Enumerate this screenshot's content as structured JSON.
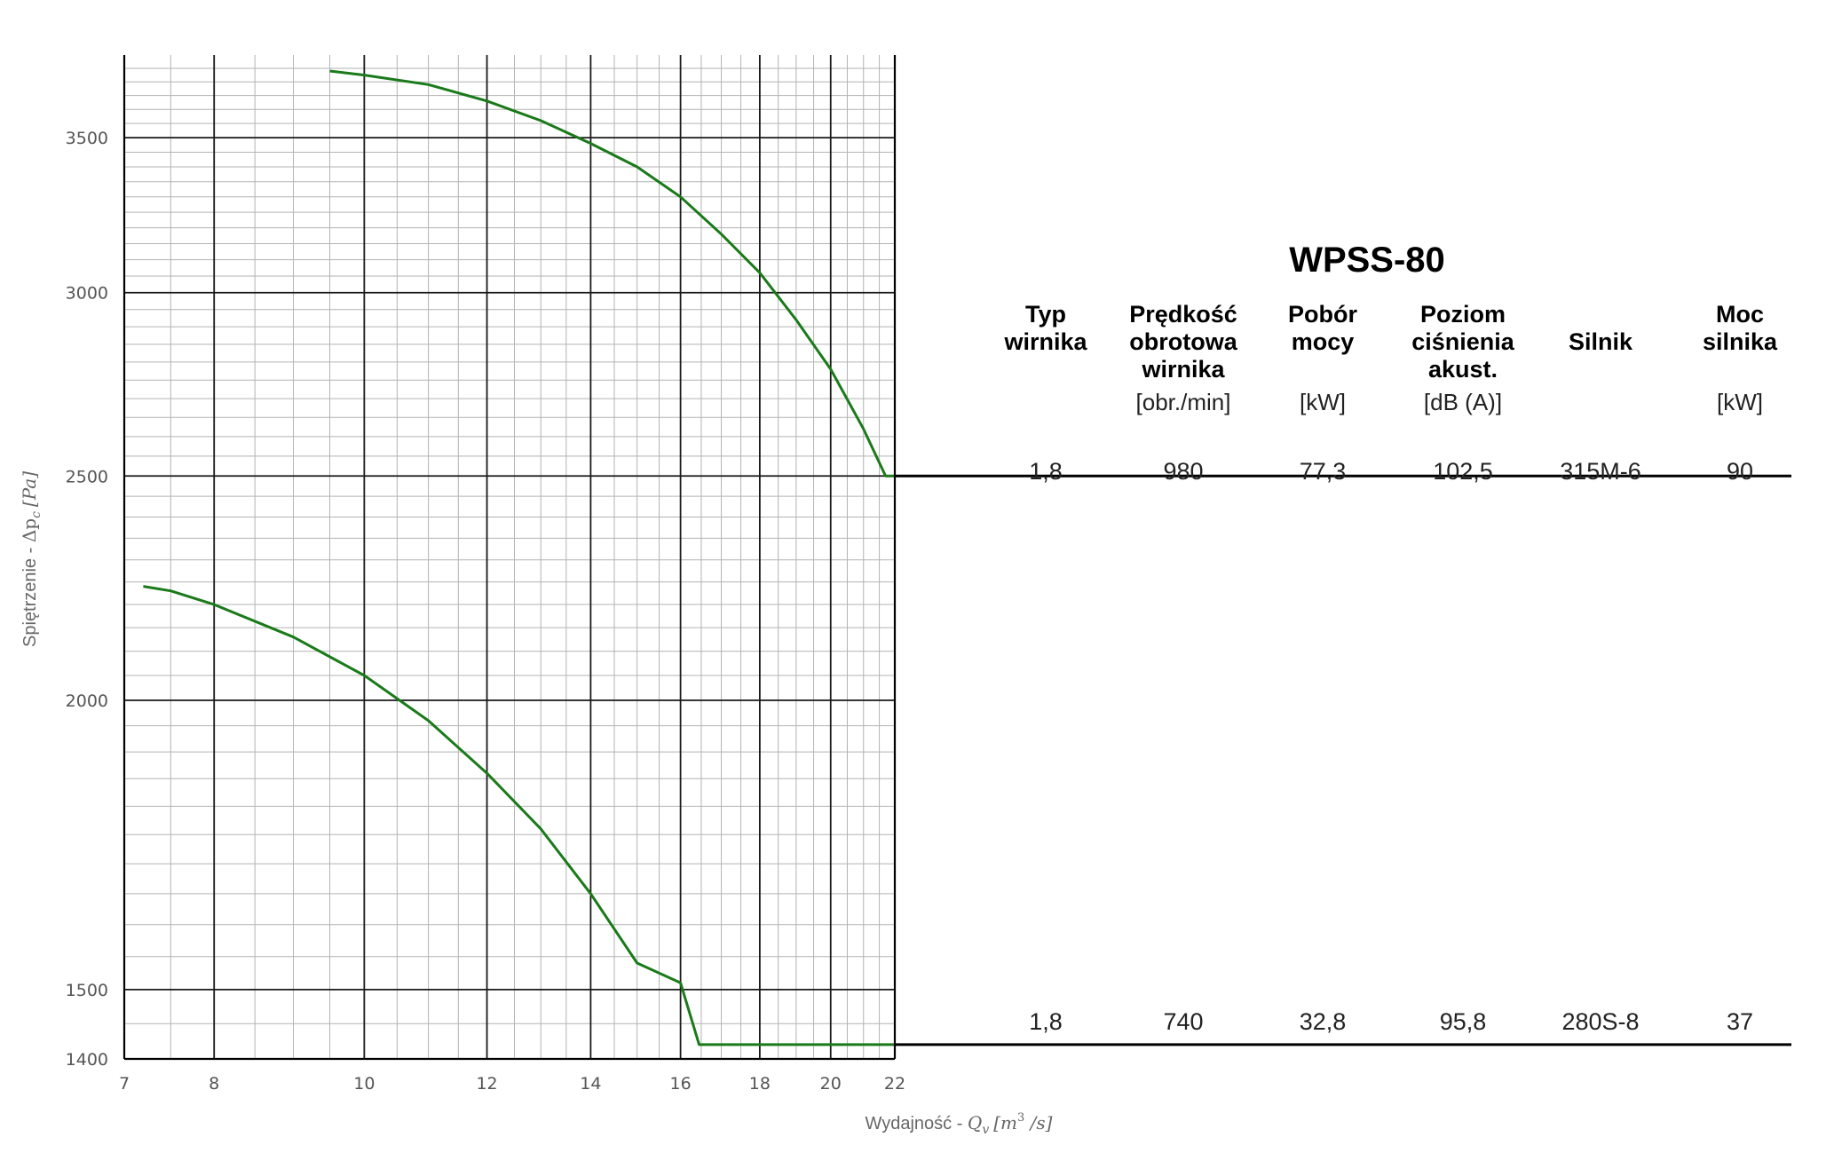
{
  "chart_data": {
    "type": "line",
    "title": "WPSS-80",
    "xlabel_prefix": "Wydajność - ",
    "xlabel_symbol": "Q",
    "xlabel_sub": "v",
    "xlabel_unit_open": "[m",
    "xlabel_unit_sup": "3",
    "xlabel_unit_close": " /s]",
    "ylabel_prefix": "Spiętrzenie - ",
    "ylabel_symbol": "Δp",
    "ylabel_sub": "c",
    "ylabel_unit": "[Pa]",
    "x_scale": "log",
    "y_scale": "log",
    "xlim": [
      7,
      22
    ],
    "ylim": [
      1400,
      3800
    ],
    "x_ticks": [
      "7",
      "8",
      "10",
      "12",
      "14",
      "16",
      "18",
      "20",
      "22"
    ],
    "y_ticks": [
      "1400",
      "1500",
      "2000",
      "2500",
      "3000",
      "3500"
    ],
    "grid": true,
    "series": [
      {
        "color": "#1a7a1a",
        "x": [
          9.5,
          10.0,
          11.0,
          12.0,
          13.0,
          14.0,
          15.0,
          16.0,
          17.0,
          18.0,
          19.0,
          20.0,
          21.0,
          21.7,
          22.0
        ],
        "y": [
          3740,
          3725,
          3690,
          3630,
          3560,
          3480,
          3400,
          3300,
          3180,
          3060,
          2920,
          2780,
          2620,
          2500,
          2500
        ]
      },
      {
        "color": "#1a7a1a",
        "x": [
          7.2,
          7.5,
          8.0,
          9.0,
          10.0,
          11.0,
          12.0,
          13.0,
          14.0,
          15.0,
          16.0,
          16.45,
          22.0
        ],
        "y": [
          2240,
          2230,
          2200,
          2130,
          2050,
          1960,
          1860,
          1760,
          1650,
          1540,
          1510,
          1420,
          1420
        ]
      }
    ],
    "table": {
      "headers": [
        {
          "lines": [
            "Typ",
            "wirnika"
          ],
          "unit": ""
        },
        {
          "lines": [
            "Prędkość",
            "obrotowa",
            "wirnika"
          ],
          "unit": "[obr./min]"
        },
        {
          "lines": [
            "Pobór",
            "mocy"
          ],
          "unit": "[kW]"
        },
        {
          "lines": [
            "Poziom",
            "ciśnienia",
            "akust."
          ],
          "unit": "[dB (A)]"
        },
        {
          "lines": [
            "Silnik"
          ],
          "unit": ""
        },
        {
          "lines": [
            "Moc",
            "silnika"
          ],
          "unit": "[kW]"
        }
      ],
      "rows": [
        {
          "values": [
            "1,8",
            "980",
            "77,3",
            "102,5",
            "315M-6",
            "90"
          ]
        },
        {
          "values": [
            "1,8",
            "740",
            "32,8",
            "95,8",
            "280S-8",
            "37"
          ]
        }
      ]
    }
  }
}
